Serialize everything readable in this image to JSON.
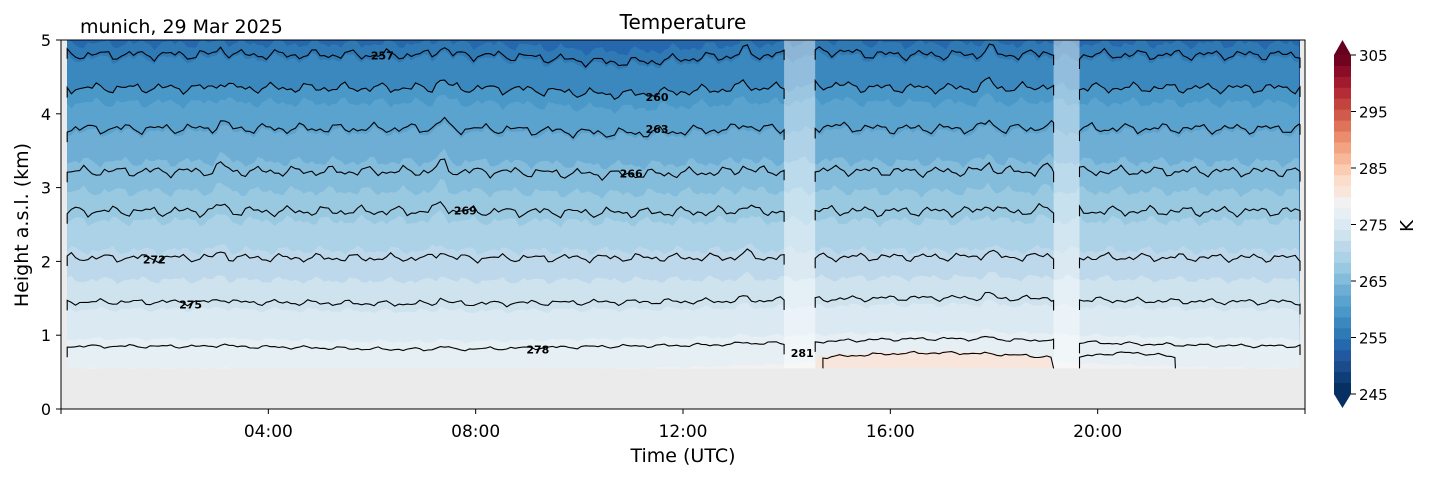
{
  "chart_data": {
    "type": "heatmap",
    "subtype": "filled-contour",
    "title": "Temperature",
    "subtitle": "munich, 29 Mar 2025",
    "xlabel": "Time (UTC)",
    "ylabel": "Height a.s.l. (km)",
    "xlim_hours": [
      0,
      24
    ],
    "ylim": [
      0,
      5
    ],
    "xticks": [
      {
        "hour": 0,
        "label": ""
      },
      {
        "hour": 4,
        "label": "04:00"
      },
      {
        "hour": 8,
        "label": "08:00"
      },
      {
        "hour": 12,
        "label": "12:00"
      },
      {
        "hour": 16,
        "label": "16:00"
      },
      {
        "hour": 20,
        "label": "20:00"
      },
      {
        "hour": 24,
        "label": ""
      }
    ],
    "yticks": [
      0,
      1,
      2,
      3,
      4,
      5
    ],
    "ytick_labels": [
      "0",
      "1",
      "2",
      "3",
      "4",
      "5"
    ],
    "data_bottom_km": 0.55,
    "data_gaps_hours": [
      [
        13.95,
        14.55
      ],
      [
        19.15,
        19.65
      ]
    ],
    "contours": [
      {
        "level": 257,
        "label": "257",
        "mean_km": 4.8,
        "label_hour": 6.2
      },
      {
        "level": 260,
        "label": "260",
        "mean_km": 4.35,
        "label_hour": 11.5
      },
      {
        "level": 263,
        "label": "263",
        "mean_km": 3.8,
        "label_hour": 11.5
      },
      {
        "level": 266,
        "label": "266",
        "mean_km": 3.22,
        "label_hour": 11.0
      },
      {
        "level": 269,
        "label": "269",
        "mean_km": 2.68,
        "label_hour": 7.8
      },
      {
        "level": 272,
        "label": "272",
        "mean_km": 2.05,
        "label_hour": 1.8
      },
      {
        "level": 275,
        "label": "275",
        "mean_km": 1.45,
        "label_hour": 2.5
      },
      {
        "level": 278,
        "label": "278",
        "mean_km": 0.85,
        "label_hour": 9.2
      },
      {
        "level": 281,
        "label": "281",
        "mean_km": 0.68,
        "label_hour": 14.3
      }
    ],
    "colorbar": {
      "label": "K",
      "vmin": 245,
      "vmax": 305,
      "ticks": [
        245,
        255,
        265,
        275,
        285,
        295,
        305
      ],
      "tick_labels": [
        "245",
        "255",
        "265",
        "275",
        "285",
        "295",
        "305"
      ],
      "extend": "both",
      "cmap": "RdBu_r",
      "colors": [
        "#053061",
        "#0f3d77",
        "#1a4c8a",
        "#21589f",
        "#2668ae",
        "#2f79b5",
        "#3b88bf",
        "#4a98c8",
        "#5ba3cf",
        "#6eaed5",
        "#84bcdb",
        "#99c9e0",
        "#abd2e6",
        "#bdd8ea",
        "#cfe3ef",
        "#dbeaf2",
        "#e6eff4",
        "#f2f1f1",
        "#f8e6dc",
        "#fcdccb",
        "#fbcbb2",
        "#f7b89a",
        "#f2a381",
        "#ea8d6d",
        "#de725b",
        "#d05a4b",
        "#c3443f",
        "#b52c36",
        "#a11a2e",
        "#8a0c28",
        "#6f0320"
      ],
      "under_color": "#053061",
      "over_color": "#67001f"
    },
    "colors": {
      "no_data": "#ebebeb",
      "contour_line": "#000000"
    }
  }
}
